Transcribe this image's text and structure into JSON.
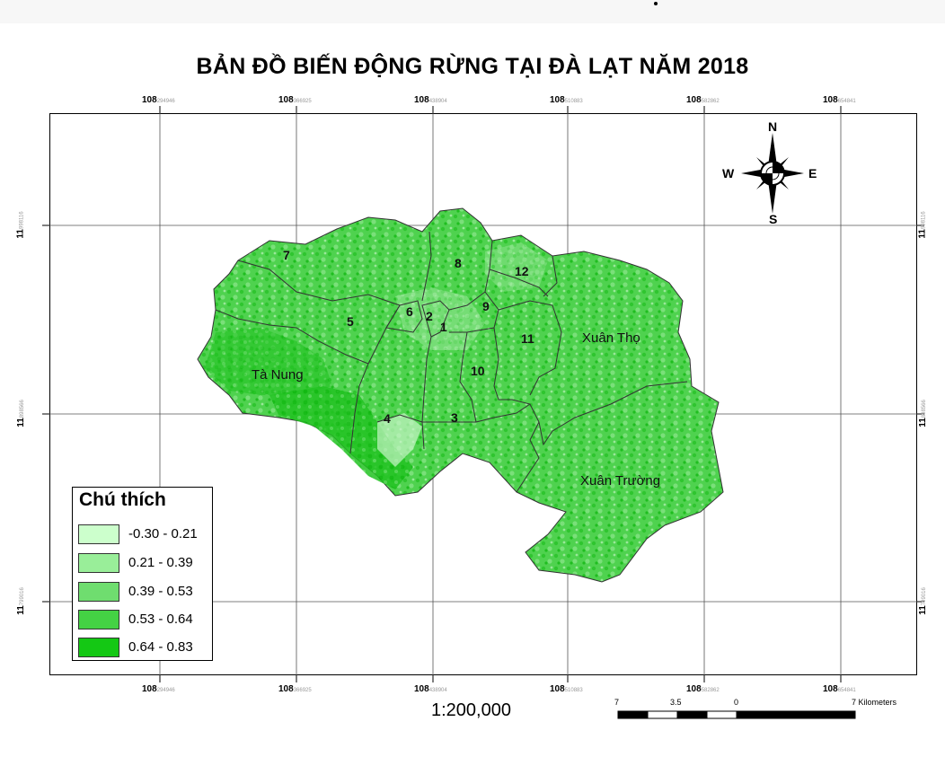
{
  "title": "BẢN ĐỒ BIẾN ĐỘNG RỪNG TẠI ĐÀ LẠT NĂM 2018",
  "top_coords": [
    {
      "main": "108",
      "sub": "294946"
    },
    {
      "main": "108",
      "sub": "366925"
    },
    {
      "main": "108",
      "sub": "438904"
    },
    {
      "main": "108",
      "sub": "510883"
    },
    {
      "main": "108",
      "sub": "582862"
    },
    {
      "main": "108",
      "sub": "654841"
    }
  ],
  "bottom_coords": [
    {
      "main": "108",
      "sub": "294946"
    },
    {
      "main": "108",
      "sub": "366925"
    },
    {
      "main": "108",
      "sub": "438904"
    },
    {
      "main": "108",
      "sub": "510883"
    },
    {
      "main": "108",
      "sub": "582862"
    },
    {
      "main": "108",
      "sub": "654841"
    }
  ],
  "left_coords": [
    {
      "main": "11",
      "sub": "998116"
    },
    {
      "main": "11",
      "sub": "898566"
    },
    {
      "main": "11",
      "sub": "799016"
    }
  ],
  "right_coords": [
    {
      "main": "11",
      "sub": "998116"
    },
    {
      "main": "11",
      "sub": "898566"
    },
    {
      "main": "11",
      "sub": "799016"
    }
  ],
  "compass": {
    "n": "N",
    "s": "S",
    "e": "E",
    "w": "W"
  },
  "region_labels": {
    "r1": "1",
    "r2": "2",
    "r3": "3",
    "r4": "4",
    "r5": "5",
    "r6": "6",
    "r7": "7",
    "r8": "8",
    "r9": "9",
    "r10": "10",
    "r11": "11",
    "r12": "12",
    "ta_nung": "Tà Nung",
    "xuan_tho": "Xuân Thọ",
    "xuan_truong": "Xuân Trường"
  },
  "legend": {
    "title": "Chú thích",
    "items": [
      {
        "label": "-0.30 - 0.21",
        "color": "#ccffcc"
      },
      {
        "label": "0.21 - 0.39",
        "color": "#99ee99"
      },
      {
        "label": "0.39 - 0.53",
        "color": "#6fdd6f"
      },
      {
        "label": "0.53 - 0.64",
        "color": "#44d244"
      },
      {
        "label": "0.64 - 0.83",
        "color": "#14c814"
      }
    ]
  },
  "scale": {
    "ratio": "1:200,000",
    "labels": [
      "7",
      "3.5",
      "0",
      "7 Kilometers"
    ]
  }
}
